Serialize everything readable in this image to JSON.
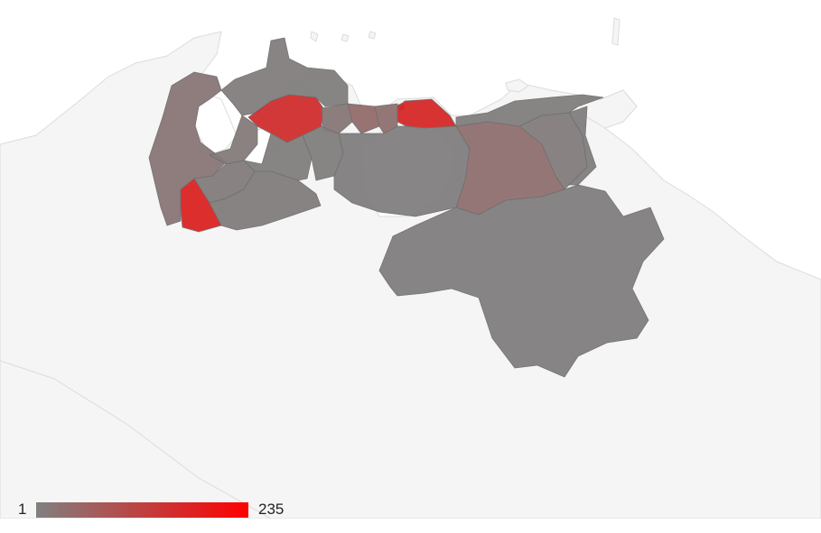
{
  "legend": {
    "min_label": "1",
    "max_label": "235",
    "min_color": "#808080",
    "max_color": "#ff0000",
    "min_value": 1,
    "max_value": 235
  },
  "map": {
    "background_land_color": "#f5f5f5",
    "border_color": "#dcdcdc",
    "regions": [
      {
        "id": "zulia",
        "value": 20
      },
      {
        "id": "falcon",
        "value": 5
      },
      {
        "id": "lara",
        "value": 150
      },
      {
        "id": "yaracuy",
        "value": 15
      },
      {
        "id": "carabobo",
        "value": 40
      },
      {
        "id": "aragua",
        "value": 30
      },
      {
        "id": "distrito-capital",
        "value": 235
      },
      {
        "id": "miranda",
        "value": 160
      },
      {
        "id": "trujillo",
        "value": 10
      },
      {
        "id": "merida",
        "value": 8
      },
      {
        "id": "tachira",
        "value": 170
      },
      {
        "id": "barinas",
        "value": 6
      },
      {
        "id": "portuguesa",
        "value": 5
      },
      {
        "id": "cojedes",
        "value": 4
      },
      {
        "id": "guarico",
        "value": 3
      },
      {
        "id": "anzoategui",
        "value": 30
      },
      {
        "id": "monagas",
        "value": 8
      },
      {
        "id": "sucre",
        "value": 5
      },
      {
        "id": "delta-amacuro",
        "value": 3
      },
      {
        "id": "bolivar",
        "value": 3
      }
    ]
  }
}
